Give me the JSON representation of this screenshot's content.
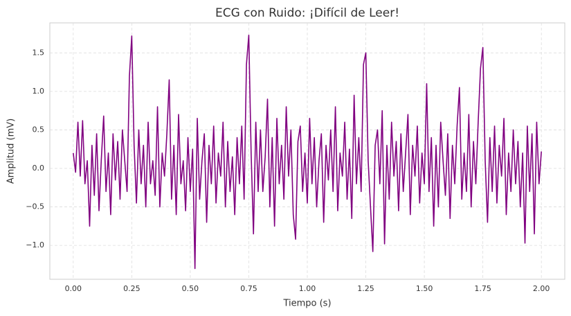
{
  "chart_data": {
    "type": "line",
    "title": "ECG con Ruido: ¡Difícil de Leer!",
    "x_label": "Tiempo (s)",
    "y_label": "Amplitud (mV)",
    "x": [
      0,
      0.01,
      0.02,
      0.03,
      0.04,
      0.05,
      0.06,
      0.07,
      0.08,
      0.09,
      0.1,
      0.11,
      0.12,
      0.13,
      0.14,
      0.15,
      0.16,
      0.17,
      0.18,
      0.19,
      0.2,
      0.21,
      0.22,
      0.23,
      0.24,
      0.25,
      0.26,
      0.27,
      0.28,
      0.29,
      0.3,
      0.31,
      0.32,
      0.33,
      0.34,
      0.35,
      0.36,
      0.37,
      0.38,
      0.39,
      0.4,
      0.41,
      0.42,
      0.43,
      0.44,
      0.45,
      0.46,
      0.47,
      0.48,
      0.49,
      0.5,
      0.51,
      0.52,
      0.53,
      0.54,
      0.55,
      0.56,
      0.57,
      0.58,
      0.59,
      0.6,
      0.61,
      0.62,
      0.63,
      0.64,
      0.65,
      0.66,
      0.67,
      0.68,
      0.69,
      0.7,
      0.71,
      0.72,
      0.73,
      0.74,
      0.75,
      0.76,
      0.77,
      0.78,
      0.79,
      0.8,
      0.81,
      0.82,
      0.83,
      0.84,
      0.85,
      0.86,
      0.87,
      0.88,
      0.89,
      0.9,
      0.91,
      0.92,
      0.93,
      0.94,
      0.95,
      0.96,
      0.97,
      0.98,
      0.99,
      1,
      1.01,
      1.02,
      1.03,
      1.04,
      1.05,
      1.06,
      1.07,
      1.08,
      1.09,
      1.1,
      1.11,
      1.12,
      1.13,
      1.14,
      1.15,
      1.16,
      1.17,
      1.18,
      1.19,
      1.2,
      1.21,
      1.22,
      1.23,
      1.24,
      1.25,
      1.26,
      1.27,
      1.28,
      1.29,
      1.3,
      1.31,
      1.32,
      1.33,
      1.34,
      1.35,
      1.36,
      1.37,
      1.38,
      1.39,
      1.4,
      1.41,
      1.42,
      1.43,
      1.44,
      1.45,
      1.46,
      1.47,
      1.48,
      1.49,
      1.5,
      1.51,
      1.52,
      1.53,
      1.54,
      1.55,
      1.56,
      1.57,
      1.58,
      1.59,
      1.6,
      1.61,
      1.62,
      1.63,
      1.64,
      1.65,
      1.66,
      1.67,
      1.68,
      1.69,
      1.7,
      1.71,
      1.72,
      1.73,
      1.74,
      1.75,
      1.76,
      1.77,
      1.78,
      1.79,
      1.8,
      1.81,
      1.82,
      1.83,
      1.84,
      1.85,
      1.86,
      1.87,
      1.88,
      1.89,
      1.9,
      1.91,
      1.92,
      1.93,
      1.94,
      1.95,
      1.96,
      1.97,
      1.98,
      1.99,
      2
    ],
    "series": [
      {
        "color": "#800080",
        "values": [
          0.2,
          -0.05,
          0.6,
          -0.1,
          0.62,
          -0.2,
          0.1,
          -0.75,
          0.3,
          -0.35,
          0.45,
          -0.55,
          0.12,
          0.68,
          -0.3,
          0.2,
          -0.6,
          0.45,
          -0.15,
          0.35,
          -0.4,
          0.5,
          0.1,
          -0.3,
          1.2,
          1.72,
          0.3,
          -0.45,
          0.5,
          -0.2,
          0.3,
          -0.5,
          0.6,
          -0.2,
          0.1,
          -0.35,
          0.8,
          -0.5,
          0.2,
          -0.1,
          0.45,
          1.15,
          -0.4,
          0.3,
          -0.6,
          0.7,
          -0.2,
          0.1,
          -0.55,
          0.4,
          -0.3,
          0.25,
          -1.3,
          0.65,
          -0.4,
          0.1,
          0.45,
          -0.7,
          0.3,
          -0.2,
          0.55,
          -0.45,
          0.2,
          -0.1,
          0.6,
          -0.5,
          0.35,
          -0.3,
          0.15,
          -0.6,
          0.4,
          -0.2,
          0.55,
          -0.4,
          1.35,
          1.73,
          0.2,
          -0.85,
          0.6,
          -0.3,
          0.5,
          -0.3,
          0.15,
          0.9,
          -0.5,
          0.4,
          -0.75,
          0.65,
          -0.2,
          0.3,
          -0.4,
          0.8,
          -0.1,
          0.5,
          -0.6,
          -0.92,
          0.35,
          0.55,
          -0.3,
          0.2,
          -0.45,
          0.65,
          -0.2,
          0.4,
          -0.5,
          0.1,
          0.45,
          -0.7,
          0.3,
          -0.15,
          0.5,
          -0.3,
          0.8,
          -0.55,
          0.2,
          -0.1,
          0.6,
          -0.4,
          0.25,
          -0.65,
          0.95,
          -0.2,
          0.4,
          -0.3,
          1.35,
          1.5,
          0.1,
          -0.5,
          -1.08,
          0.3,
          0.5,
          -0.2,
          0.75,
          -0.98,
          0.3,
          -0.4,
          0.6,
          -0.1,
          0.35,
          -0.55,
          0.45,
          -0.3,
          0.2,
          0.7,
          -0.6,
          0.3,
          -0.1,
          0.55,
          -0.45,
          0.2,
          -0.2,
          1.1,
          -0.3,
          0.4,
          -0.75,
          0.3,
          -0.5,
          0.6,
          0.1,
          -0.35,
          0.45,
          -0.65,
          0.3,
          -0.2,
          0.55,
          1.05,
          -0.4,
          0.2,
          -0.3,
          0.7,
          -0.5,
          0.35,
          -0.2,
          0.6,
          1.3,
          1.57,
          0.1,
          -0.7,
          0.4,
          -0.3,
          0.55,
          -0.45,
          0.3,
          -0.1,
          0.65,
          -0.6,
          0.2,
          -0.3,
          0.5,
          -0.2,
          0.35,
          -0.5,
          0.2,
          -0.97,
          0.55,
          -0.3,
          0.45,
          -0.85,
          0.6,
          -0.2,
          0.22
        ]
      }
    ],
    "xlim": [
      -0.1,
      2.1
    ],
    "ylim": [
      -1.44,
      1.89
    ],
    "xticks": [
      {
        "value": 0,
        "label": "0.00"
      },
      {
        "value": 0.25,
        "label": "0.25"
      },
      {
        "value": 0.5,
        "label": "0.50"
      },
      {
        "value": 0.75,
        "label": "0.75"
      },
      {
        "value": 1,
        "label": "1.00"
      },
      {
        "value": 1.25,
        "label": "1.25"
      },
      {
        "value": 1.5,
        "label": "1.50"
      },
      {
        "value": 1.75,
        "label": "1.75"
      },
      {
        "value": 2,
        "label": "2.00"
      }
    ],
    "yticks": [
      {
        "value": -1,
        "label": "−1.0"
      },
      {
        "value": -0.5,
        "label": "−0.5"
      },
      {
        "value": 0,
        "label": "0.0"
      },
      {
        "value": 0.5,
        "label": "0.5"
      },
      {
        "value": 1,
        "label": "1.0"
      },
      {
        "value": 1.5,
        "label": "1.5"
      }
    ],
    "grid": true
  }
}
